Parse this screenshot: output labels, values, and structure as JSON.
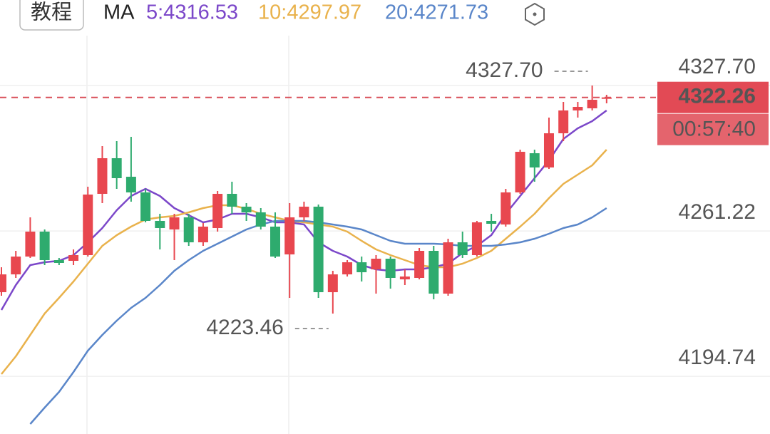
{
  "header": {
    "button": "教程"
  },
  "chart_data": {
    "type": "candlestick",
    "ma_label": "MA",
    "up_color": "#e8474f",
    "down_color": "#2eab6e",
    "open": [
      4233.23,
      4241.38,
      4249.52,
      4260.92,
      4247.89,
      4247.57,
      4250.17,
      4278.19,
      4294.47,
      4286.0,
      4278.84,
      4265.81,
      4261.9,
      4267.44,
      4256.03,
      4262.55,
      4278.19,
      4272.32,
      4269.72,
      4263.2,
      4250.5,
      4267.44,
      4272.32,
      4233.23,
      4241.38,
      4246.91,
      4243.66,
      4248.54,
      4239.1,
      4239.75,
      4252.13,
      4232.58,
      4256.03,
      4250.17,
      4265.81,
      4264.18,
      4278.84,
      4296.75,
      4290.24,
      4305.87,
      4316.3,
      4317.28,
      4321.8
    ],
    "high": [
      4244.63,
      4252.13,
      4267.44,
      4261.9,
      4248.87,
      4252.78,
      4281.44,
      4300.01,
      4302.29,
      4304.25,
      4280.47,
      4269.06,
      4269.06,
      4269.06,
      4264.83,
      4279.49,
      4283.72,
      4273.95,
      4271.67,
      4269.72,
      4273.95,
      4274.6,
      4273.3,
      4243.0,
      4247.89,
      4249.52,
      4250.17,
      4249.52,
      4243.66,
      4253.43,
      4254.41,
      4257.66,
      4260.92,
      4265.81,
      4269.06,
      4280.47,
      4298.38,
      4298.38,
      4313.04,
      4320.21,
      4320.21,
      4327.7,
      4323.47
    ],
    "low": [
      4231.6,
      4239.75,
      4248.87,
      4245.61,
      4245.61,
      4245.61,
      4249.52,
      4273.95,
      4280.47,
      4274.6,
      4265.16,
      4252.78,
      4247.89,
      4254.41,
      4254.41,
      4260.92,
      4269.06,
      4265.81,
      4261.9,
      4248.87,
      4230.63,
      4265.81,
      4230.63,
      4223.46,
      4240.4,
      4238.12,
      4232.58,
      4234.86,
      4236.49,
      4239.1,
      4229.97,
      4231.6,
      4248.87,
      4249.52,
      4260.92,
      4263.2,
      4278.19,
      4283.72,
      4289.59,
      4302.29,
      4313.04,
      4316.3,
      4319.56
    ],
    "close": [
      4241.38,
      4249.52,
      4260.92,
      4247.89,
      4246.59,
      4250.17,
      4277.86,
      4294.47,
      4285.35,
      4278.84,
      4265.81,
      4262.55,
      4267.44,
      4256.03,
      4263.2,
      4278.19,
      4272.32,
      4269.72,
      4263.2,
      4249.52,
      4267.44,
      4272.32,
      4233.23,
      4241.38,
      4246.91,
      4242.35,
      4248.54,
      4239.75,
      4240.4,
      4252.13,
      4232.58,
      4256.03,
      4250.17,
      4265.16,
      4264.5,
      4278.84,
      4297.41,
      4290.24,
      4305.87,
      4316.3,
      4317.93,
      4321.18,
      4322.26
    ],
    "series": [
      {
        "name": "5:4316.53",
        "color": "#7b47c9",
        "values": [
          4225.09,
          4236.49,
          4245.61,
          4246.91,
          4247.57,
          4250.17,
          4256.03,
          4262.55,
          4270.69,
          4277.21,
          4280.47,
          4277.21,
          4271.67,
          4268.41,
          4265.16,
          4266.46,
          4269.06,
          4269.06,
          4267.44,
          4265.16,
          4265.16,
          4264.18,
          4256.03,
          4252.13,
          4249.52,
          4245.61,
          4243.66,
          4243.0,
          4243.66,
          4243.66,
          4244.63,
          4246.26,
          4251.15,
          4254.41,
          4259.29,
          4269.06,
          4277.21,
          4285.35,
          4293.5,
          4303.27,
          4308.15,
          4311.41,
          4316.3
        ]
      },
      {
        "name": "10:4297.97",
        "color": "#e9b24c",
        "values": [
          4195.77,
          4203.91,
          4213.69,
          4223.46,
          4230.63,
          4238.12,
          4246.26,
          4254.41,
          4259.29,
          4263.2,
          4266.46,
          4267.44,
          4268.09,
          4269.72,
          4271.67,
          4272.97,
          4272.97,
          4271.35,
          4269.06,
          4267.44,
          4265.81,
          4265.16,
          4264.18,
          4263.2,
          4260.92,
          4256.69,
          4252.78,
          4250.17,
          4247.89,
          4245.61,
          4244.63,
          4244.63,
          4246.26,
          4248.87,
          4252.13,
          4257.66,
          4263.2,
          4269.06,
          4276.23,
          4282.75,
          4286.98,
          4291.22,
          4298.38
        ]
      },
      {
        "name": "20:4271.73",
        "color": "#5a86c9",
        "values": [
          null,
          null,
          4172.97,
          4180.46,
          4187.63,
          4196.75,
          4206.52,
          4213.69,
          4220.2,
          4226.07,
          4230.63,
          4236.49,
          4243.0,
          4247.89,
          4252.13,
          4255.38,
          4258.64,
          4261.9,
          4264.18,
          4265.81,
          4265.81,
          4265.81,
          4265.16,
          4264.18,
          4263.2,
          4261.9,
          4259.29,
          4256.69,
          4255.38,
          4255.38,
          4255.38,
          4255.06,
          4254.41,
          4254.41,
          4254.41,
          4255.06,
          4256.03,
          4257.66,
          4259.94,
          4262.55,
          4264.18,
          4267.44,
          4271.67
        ]
      }
    ],
    "ylim": [
      4168.41,
      4366.79
    ],
    "yticks": [
      {
        "value": 4327.7,
        "label": "4327.70"
      },
      4261.22,
      4194.74
    ],
    "grid": true,
    "current_price": 4322.26,
    "countdown": "00:57:40",
    "max_marker": {
      "value": 4327.7,
      "label": "4327.70"
    },
    "min_marker": 4223.46
  }
}
